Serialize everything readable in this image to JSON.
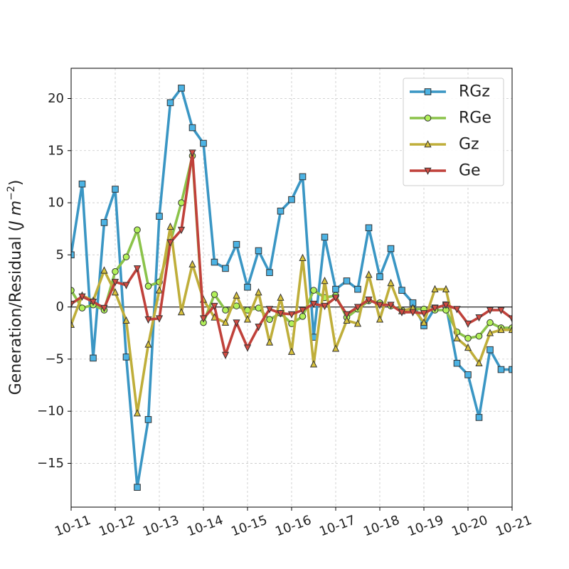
{
  "chart_data": {
    "type": "line",
    "ylabel_main": "Generation/Residual (",
    "ylabel_unit": "J m",
    "ylabel_exp": "−2",
    "ylabel_close": ")",
    "xlim": [
      0,
      10
    ],
    "ylim": [
      -19.2,
      22.9
    ],
    "grid": true,
    "legend_position": "top-right",
    "x_ticks": [
      {
        "value": 0,
        "label": "10-11"
      },
      {
        "value": 1,
        "label": "10-12"
      },
      {
        "value": 2,
        "label": "10-13"
      },
      {
        "value": 3,
        "label": "10-14"
      },
      {
        "value": 4,
        "label": "10-15"
      },
      {
        "value": 5,
        "label": "10-16"
      },
      {
        "value": 6,
        "label": "10-17"
      },
      {
        "value": 7,
        "label": "10-18"
      },
      {
        "value": 8,
        "label": "10-19"
      },
      {
        "value": 9,
        "label": "10-20"
      },
      {
        "value": 10,
        "label": "10-21"
      }
    ],
    "y_ticks": [
      {
        "value": -15,
        "label": "−15"
      },
      {
        "value": -10,
        "label": "−10"
      },
      {
        "value": -5,
        "label": "−5"
      },
      {
        "value": 0,
        "label": "0"
      },
      {
        "value": 5,
        "label": "5"
      },
      {
        "value": 10,
        "label": "10"
      },
      {
        "value": 15,
        "label": "15"
      },
      {
        "value": 20,
        "label": "20"
      }
    ],
    "x": [
      0,
      0.25,
      0.5,
      0.75,
      1,
      1.25,
      1.5,
      1.75,
      2,
      2.25,
      2.5,
      2.75,
      3,
      3.25,
      3.5,
      3.75,
      4,
      4.25,
      4.5,
      4.75,
      5,
      5.25,
      5.5,
      5.75,
      6,
      6.25,
      6.5,
      6.75,
      7,
      7.25,
      7.5,
      7.75,
      8,
      8.25,
      8.5,
      8.75,
      9,
      9.25,
      9.5,
      9.75,
      10
    ],
    "series": [
      {
        "name": "RGz",
        "color": "#3a96c4",
        "marker": "square",
        "marker_fill": "#4cb3e4",
        "values": [
          5.0,
          11.8,
          -4.9,
          8.1,
          11.3,
          -4.8,
          -17.3,
          -10.8,
          8.7,
          19.6,
          21.0,
          17.2,
          15.7,
          4.3,
          3.7,
          6.0,
          1.9,
          5.4,
          3.3,
          9.2,
          10.3,
          12.5,
          -2.9,
          6.7,
          1.7,
          2.5,
          1.7,
          7.6,
          2.9,
          5.6,
          1.6,
          0.4,
          -1.8,
          -0.1,
          0.2,
          -5.4,
          -6.5,
          -10.6,
          -4.1,
          -6.0,
          -6.0
        ]
      },
      {
        "name": "RGe",
        "color": "#8bc34a",
        "marker": "circle",
        "marker_fill": "#b2f15a",
        "values": [
          1.6,
          -0.1,
          0.2,
          -0.3,
          3.4,
          4.8,
          7.4,
          2.0,
          2.4,
          6.2,
          10.0,
          14.5,
          -1.5,
          1.2,
          -0.3,
          0.1,
          -0.3,
          -0.1,
          -1.2,
          -0.6,
          -1.6,
          -0.9,
          1.6,
          0.9,
          1.1,
          -1.0,
          -0.2,
          0.6,
          0.4,
          0.1,
          -0.3,
          -0.2,
          -0.2,
          -0.3,
          -0.3,
          -2.4,
          -3.0,
          -2.8,
          -1.5,
          -2.0,
          -2.0
        ]
      },
      {
        "name": "Gz",
        "color": "#bfae3a",
        "marker": "triangle-up",
        "marker_fill": "#d8c23c",
        "values": [
          -1.7,
          1.1,
          0.6,
          3.5,
          1.4,
          -1.3,
          -10.2,
          -3.6,
          1.6,
          7.7,
          -0.5,
          4.1,
          0.7,
          -1.0,
          -1.5,
          1.1,
          -1.2,
          1.4,
          -3.4,
          0.9,
          -4.3,
          4.7,
          -5.5,
          2.5,
          -4.0,
          -1.3,
          -1.6,
          3.1,
          -1.2,
          2.3,
          -0.4,
          -0.1,
          -1.5,
          1.7,
          1.7,
          -3.0,
          -3.9,
          -5.4,
          -2.5,
          -2.2,
          -2.2
        ]
      },
      {
        "name": "Ge",
        "color": "#c0413a",
        "marker": "triangle-down",
        "marker_fill": "#d24b42",
        "values": [
          0.3,
          1.0,
          0.5,
          -0.1,
          2.4,
          2.1,
          3.7,
          -1.2,
          -1.1,
          6.2,
          7.4,
          14.8,
          -1.1,
          0.1,
          -4.6,
          -1.5,
          -3.9,
          -1.9,
          -0.2,
          -0.6,
          -0.7,
          -0.3,
          0.3,
          0.1,
          0.9,
          -0.7,
          0.0,
          0.7,
          0.2,
          0.2,
          -0.5,
          -0.5,
          -0.6,
          -0.1,
          0.2,
          -0.2,
          -1.6,
          -1.0,
          -0.3,
          -0.3,
          -1.1
        ]
      }
    ]
  }
}
